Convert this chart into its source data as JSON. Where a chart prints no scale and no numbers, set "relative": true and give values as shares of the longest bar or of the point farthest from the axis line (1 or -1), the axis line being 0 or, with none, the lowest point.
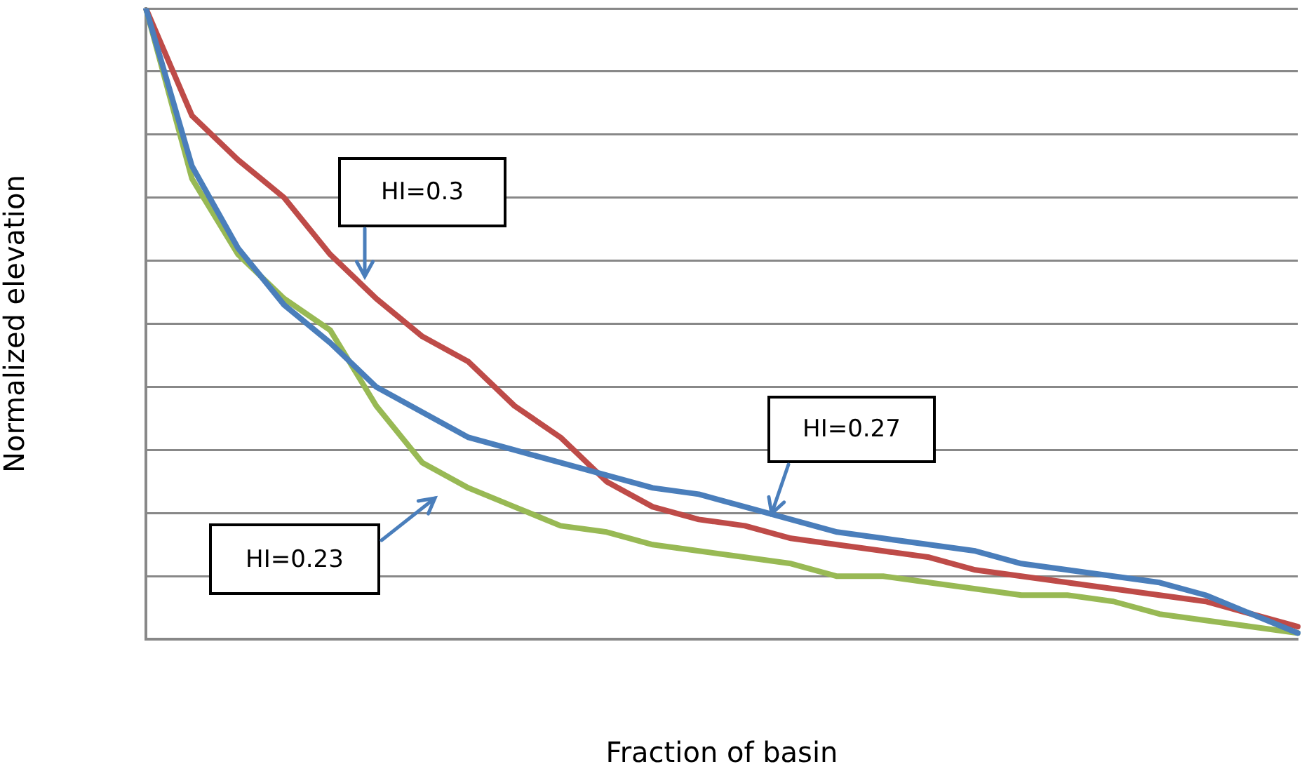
{
  "chart_data": {
    "type": "line",
    "relative": true,
    "xlabel": "Fraction of basin",
    "ylabel": "Normalized elevation",
    "grid": "y",
    "legend": false,
    "marker": "none",
    "line_style": "solid",
    "categories": [
      null,
      null,
      null,
      null,
      null,
      null,
      null,
      null,
      null,
      null,
      null,
      null,
      null,
      null,
      null,
      null,
      null,
      null,
      null,
      null,
      null,
      null,
      null,
      null,
      null,
      null
    ],
    "series": [
      {
        "color": "#4a7ebb",
        "values": [
          1,
          0.75,
          0.62,
          0.53,
          0.47,
          0.4,
          0.36,
          0.32,
          0.3,
          0.28,
          0.26,
          0.24,
          0.23,
          0.21,
          0.19,
          0.17,
          0.16,
          0.15,
          0.14,
          0.12,
          0.11,
          0.1,
          0.09,
          0.07,
          0.04,
          0.01
        ]
      },
      {
        "color": "#be4b48",
        "values": [
          1,
          0.83,
          0.76,
          0.7,
          0.61,
          0.54,
          0.48,
          0.44,
          0.37,
          0.32,
          0.25,
          0.21,
          0.19,
          0.18,
          0.16,
          0.15,
          0.14,
          0.13,
          0.11,
          0.1,
          0.09,
          0.08,
          0.07,
          0.06,
          0.04,
          0.02
        ]
      },
      {
        "color": "#98b954",
        "values": [
          1,
          0.73,
          0.61,
          0.54,
          0.49,
          0.37,
          0.28,
          0.24,
          0.21,
          0.18,
          0.17,
          0.15,
          0.14,
          0.13,
          0.12,
          0.1,
          0.1,
          0.09,
          0.08,
          0.07,
          0.07,
          0.06,
          0.04,
          0.03,
          0.02,
          0.01
        ]
      }
    ],
    "annotations": [
      "HI=0.3",
      "HI=0.27",
      "HI=0.23"
    ]
  }
}
